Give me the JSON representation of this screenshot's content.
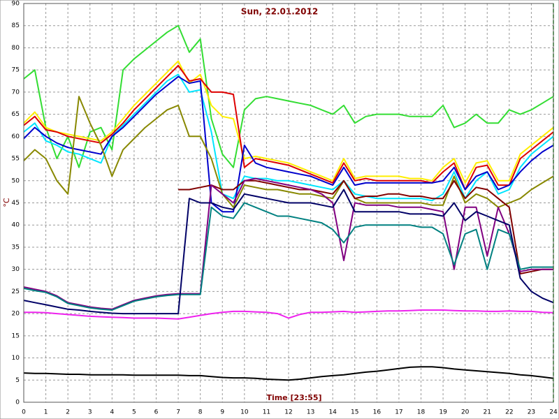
{
  "chart_data": {
    "type": "line",
    "title": "Sun, 22.01.2012",
    "x_label": "Time [23:55]",
    "y_label": "°C",
    "xlim": [
      0,
      24
    ],
    "xticks": [
      0,
      1,
      2,
      3,
      4,
      5,
      6,
      7,
      8,
      9,
      10,
      11,
      12,
      13,
      14,
      15,
      16,
      17,
      18,
      19,
      20,
      21,
      22,
      23,
      24
    ],
    "ylim": [
      0,
      90
    ],
    "yticks": [
      0,
      5,
      10,
      15,
      20,
      25,
      30,
      35,
      40,
      45,
      50,
      55,
      60,
      65,
      70,
      75,
      80,
      85,
      90
    ],
    "grid": true,
    "x": [
      0,
      0.5,
      1,
      1.5,
      2,
      2.5,
      3,
      3.5,
      4,
      4.5,
      5,
      5.5,
      6,
      6.5,
      7,
      7.5,
      8,
      8.5,
      9,
      9.5,
      10,
      10.5,
      11,
      11.5,
      12,
      12.5,
      13,
      13.5,
      14,
      14.5,
      15,
      15.5,
      16,
      16.5,
      17,
      17.5,
      18,
      18.5,
      19,
      19.5,
      20,
      20.5,
      21,
      21.5,
      22,
      22.5,
      23,
      23.5,
      24
    ],
    "series": [
      {
        "color": "#33dd33",
        "values": [
          73,
          75,
          62,
          55,
          60,
          53,
          61,
          62,
          57,
          75,
          77.5,
          79.5,
          81.5,
          83.5,
          85,
          79,
          82,
          64,
          56,
          53,
          66,
          68.5,
          69,
          68.5,
          68,
          67.5,
          67,
          66,
          65,
          67,
          63,
          64.5,
          65,
          65,
          65,
          64.5,
          64.5,
          64.5,
          67,
          62,
          63,
          65,
          63,
          63,
          66,
          65,
          66,
          67.5,
          69
        ]
      },
      {
        "color": "#ffee00",
        "values": [
          63,
          65.5,
          62,
          61,
          60.5,
          60,
          59.5,
          59,
          61,
          64,
          67,
          69.5,
          72,
          74.5,
          77,
          72,
          74,
          67,
          64.5,
          64,
          55,
          55.5,
          55,
          54.5,
          54,
          53,
          52,
          51,
          50,
          55,
          50.5,
          51,
          51,
          51,
          51,
          50.5,
          50.5,
          50,
          53,
          55,
          49.5,
          54,
          54.5,
          50,
          50,
          56,
          58,
          60,
          62
        ]
      },
      {
        "color": "#dd0000",
        "values": [
          62.5,
          64.5,
          61.5,
          61,
          60,
          59.5,
          59,
          58.5,
          60.5,
          63,
          66,
          68.5,
          71,
          73.5,
          76,
          72.5,
          73,
          70,
          70,
          69.5,
          53,
          55,
          54.5,
          54,
          53.5,
          52.5,
          51.5,
          50.5,
          49.5,
          54,
          50,
          50.5,
          50,
          50,
          50,
          50,
          50,
          49.5,
          52,
          54,
          48,
          53,
          53.5,
          49,
          49,
          55,
          57,
          59,
          61
        ]
      },
      {
        "color": "#00e5ff",
        "values": [
          61,
          63,
          59,
          58,
          56.5,
          56,
          55,
          54,
          60,
          62.5,
          65,
          67.5,
          70,
          72.5,
          74,
          70,
          70.5,
          61,
          47,
          46,
          51,
          50.5,
          50.5,
          50,
          50,
          49.5,
          49,
          48.5,
          48,
          50,
          47,
          46.5,
          46,
          46,
          46,
          46,
          46,
          45.5,
          47,
          52,
          46,
          50,
          52,
          47,
          48,
          53,
          56,
          58,
          60
        ]
      },
      {
        "color": "#0000cc",
        "values": [
          59.5,
          62,
          60,
          58.5,
          57.5,
          57,
          56.5,
          56,
          60,
          62,
          64.5,
          67,
          69.5,
          71.5,
          73.5,
          72,
          72.5,
          45,
          43,
          43,
          58,
          54,
          53,
          52.5,
          52,
          51.5,
          51,
          50,
          49,
          53,
          49,
          49.5,
          49.5,
          49.5,
          49.5,
          49.5,
          49.5,
          49.5,
          50,
          53,
          48,
          51,
          52,
          48,
          49,
          52,
          54.5,
          56.5,
          58
        ]
      },
      {
        "color": "#888800",
        "values": [
          54.5,
          57,
          55,
          50,
          47,
          69,
          63,
          58,
          51,
          57,
          59.5,
          62,
          64,
          66,
          67,
          60,
          60,
          55,
          47,
          44,
          49,
          48.5,
          48,
          48,
          47.5,
          47,
          47,
          46.5,
          46,
          50,
          46,
          45,
          45,
          45,
          45,
          45,
          45,
          44.5,
          44.5,
          51,
          45,
          47,
          46,
          44,
          45,
          46,
          48,
          49.5,
          51
        ]
      },
      {
        "color": "#800000",
        "values": [
          null,
          null,
          null,
          null,
          null,
          null,
          null,
          null,
          null,
          null,
          null,
          null,
          null,
          null,
          48,
          48,
          48.5,
          49,
          48,
          48,
          50,
          50,
          49.5,
          49,
          48.5,
          48,
          48,
          47.5,
          47,
          50,
          46,
          46.5,
          46.5,
          47,
          47,
          46.5,
          46.5,
          46,
          46,
          50,
          46,
          48.5,
          48,
          46,
          44,
          29,
          29.5,
          30,
          30
        ]
      },
      {
        "color": "#800080",
        "values": [
          26,
          25.5,
          25,
          24,
          22.5,
          22,
          21.5,
          21.2,
          21,
          22,
          23,
          23.5,
          24,
          24.3,
          24.5,
          24.5,
          24.5,
          49,
          47,
          45,
          50,
          50.5,
          50,
          49.5,
          49,
          48.5,
          48,
          47,
          45,
          32,
          45,
          44.5,
          44.5,
          44.5,
          44,
          44,
          44,
          43.5,
          43,
          30,
          44,
          44,
          33,
          44,
          38,
          29.5,
          30,
          30,
          30
        ]
      },
      {
        "color": "#008080",
        "values": [
          25.7,
          25.2,
          24.8,
          23.8,
          22.3,
          21.8,
          21.3,
          21,
          20.8,
          21.8,
          22.8,
          23.3,
          23.8,
          24.1,
          24.3,
          24.3,
          24.3,
          44,
          42,
          41.5,
          45,
          44,
          43,
          42,
          42,
          41.5,
          41,
          40.5,
          39,
          36,
          39.5,
          40,
          40,
          40,
          40,
          40,
          39.5,
          39.5,
          38,
          31,
          38,
          39,
          30,
          39,
          38,
          30,
          30.5,
          30.5,
          30.5
        ]
      },
      {
        "color": "#000066",
        "values": [
          23,
          22.5,
          22,
          21.5,
          21,
          20.8,
          20.5,
          20.3,
          20.1,
          20,
          20,
          20,
          20,
          20,
          20,
          46,
          45,
          45,
          44,
          43.5,
          47,
          46.5,
          46,
          45.5,
          45,
          45,
          45,
          44.5,
          44,
          48,
          43,
          43,
          43,
          43,
          43,
          42.5,
          42.5,
          42.5,
          42,
          45,
          41,
          43,
          42,
          41,
          40,
          28,
          25,
          23.5,
          22.5
        ]
      },
      {
        "color": "#ee22ee",
        "values": [
          20.3,
          20.3,
          20.2,
          20,
          19.8,
          19.6,
          19.4,
          19.3,
          19.2,
          19.1,
          19,
          19,
          19,
          18.9,
          18.8,
          19.2,
          19.6,
          20,
          20.3,
          20.5,
          20.5,
          20.4,
          20.3,
          20,
          19,
          19.8,
          20.3,
          20.3,
          20.4,
          20.5,
          20.3,
          20.4,
          20.5,
          20.6,
          20.6,
          20.7,
          20.8,
          20.8,
          20.8,
          20.7,
          20.6,
          20.6,
          20.5,
          20.5,
          20.6,
          20.5,
          20.5,
          20.3,
          20.2
        ]
      },
      {
        "color": "#000000",
        "values": [
          6.6,
          6.5,
          6.5,
          6.4,
          6.3,
          6.3,
          6.2,
          6.2,
          6.2,
          6.2,
          6.1,
          6.1,
          6.1,
          6.1,
          6.1,
          6,
          6,
          5.8,
          5.6,
          5.5,
          5.5,
          5.4,
          5.2,
          5.1,
          5,
          5.2,
          5.5,
          5.8,
          6,
          6.2,
          6.5,
          6.8,
          7,
          7.3,
          7.6,
          7.9,
          8,
          8,
          7.8,
          7.5,
          7.3,
          7.1,
          6.9,
          6.7,
          6.5,
          6.2,
          6,
          5.7,
          5.4
        ]
      }
    ]
  }
}
